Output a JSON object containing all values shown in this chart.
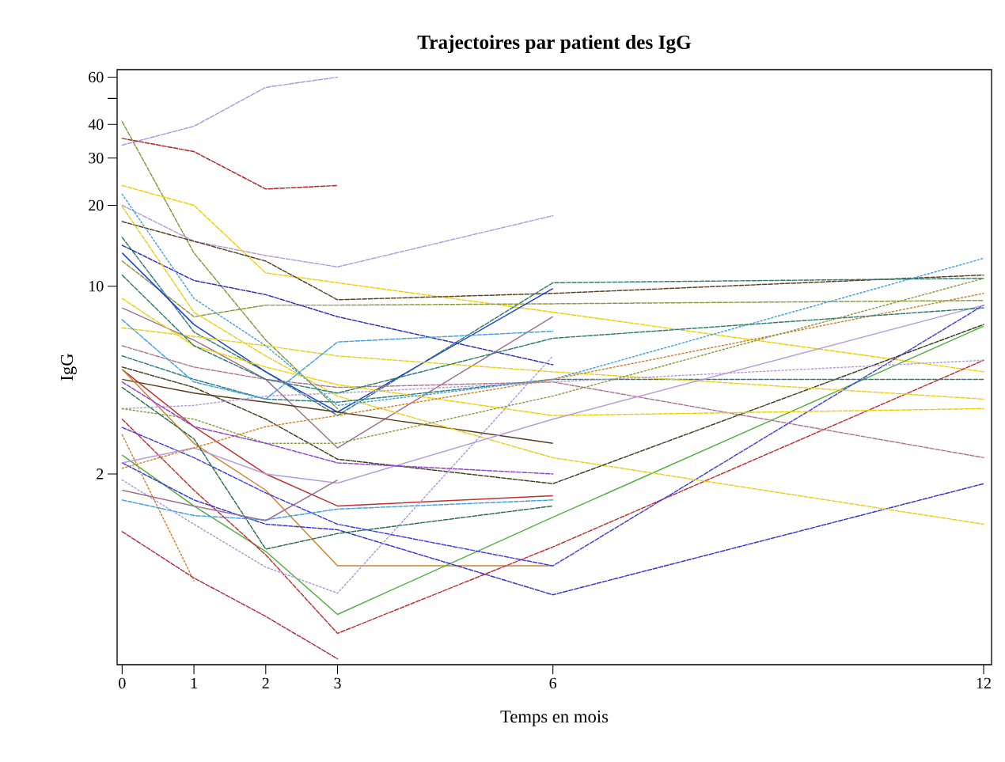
{
  "chart_data": {
    "type": "line",
    "title": "Trajectoires par patient des IgG",
    "xlabel": "Temps en mois",
    "ylabel": "IgG",
    "x": [
      0,
      1,
      2,
      3,
      6,
      12
    ],
    "log": "y",
    "marker": "none",
    "xlim": [
      -0.07,
      12.11
    ],
    "ylim": [
      0.39,
      64
    ],
    "xticks": [
      0,
      1,
      2,
      3,
      6,
      12
    ],
    "yticks": [
      2,
      10,
      20,
      30,
      40,
      {
        "value": 50,
        "label": null
      },
      60
    ],
    "series": [
      {
        "color": "#a899e6",
        "line_style": "dashed",
        "values": [
          33.5,
          39.4,
          55,
          60,
          null,
          null
        ]
      },
      {
        "color": "#b22222",
        "line_style": "dashed",
        "values": [
          35.5,
          31.7,
          23,
          23.7,
          null,
          null
        ]
      },
      {
        "color": "#7f9a3a",
        "line_style": "dashed",
        "values": [
          41,
          13.3,
          6.3,
          3.5,
          null,
          null
        ]
      },
      {
        "color": "#b39ddb",
        "line_style": "dashed",
        "values": [
          20,
          14.7,
          13,
          11.8,
          18.3,
          null
        ]
      },
      {
        "color": "#f0d000",
        "line_style": "dashed",
        "values": [
          23.7,
          20,
          11.2,
          10.3,
          8,
          4.8
        ]
      },
      {
        "color": "#5c4020",
        "line_style": "dashed",
        "values": [
          17.4,
          14.7,
          12.4,
          8.9,
          9.4,
          11
        ]
      },
      {
        "color": "#2e7d6e",
        "line_style": "dashed",
        "values": [
          15.2,
          6.75,
          4.8,
          3.3,
          10.3,
          10.7
        ]
      },
      {
        "color": "#8a9a40",
        "line_style": "dashed",
        "values": [
          12.4,
          7.7,
          8.5,
          8.5,
          8.6,
          8.85
        ]
      },
      {
        "color": "#3030c0",
        "line_style": "dashed",
        "values": [
          14.2,
          10.5,
          9.3,
          7.7,
          5.1,
          null
        ]
      },
      {
        "color": "#2040d0",
        "line_style": "solid",
        "values": [
          13.3,
          7.2,
          4.8,
          3.4,
          9.8,
          null
        ]
      },
      {
        "color": "#a07090",
        "line_style": "solid",
        "values": [
          8.3,
          6.3,
          4.5,
          2.5,
          7.7,
          null
        ]
      },
      {
        "color": "#5a3a1a",
        "line_style": "solid",
        "values": [
          4.5,
          4.0,
          3.7,
          3.4,
          2.6,
          null
        ]
      },
      {
        "color": "#c03030",
        "line_style": "solid",
        "values": [
          4.9,
          3.0,
          2.0,
          1.52,
          1.66,
          null
        ]
      },
      {
        "color": "#d08030",
        "line_style": "solid",
        "values": [
          4.9,
          2.6,
          1.74,
          0.91,
          0.91,
          null
        ]
      },
      {
        "color": "#50b040",
        "line_style": "solid",
        "values": [
          2.35,
          1.52,
          1.03,
          0.6,
          1.38,
          7.1
        ]
      },
      {
        "color": "#c03030",
        "line_style": "dashed",
        "values": [
          3.2,
          1.74,
          1.0,
          0.51,
          1.07,
          5.3
        ]
      },
      {
        "color": "#b03040",
        "line_style": "dashed",
        "values": [
          1.22,
          0.82,
          0.59,
          0.41,
          null,
          null
        ]
      },
      {
        "color": "#3535d0",
        "line_style": "dashed",
        "values": [
          2.2,
          1.6,
          1.3,
          1.24,
          0.71,
          1.84
        ]
      },
      {
        "color": "#4040e0",
        "line_style": "dashed",
        "values": [
          2.98,
          2.3,
          1.7,
          1.3,
          0.91,
          8.5
        ]
      },
      {
        "color": "#e8d020",
        "line_style": "dashed",
        "values": [
          19.8,
          8,
          5.5,
          3.9,
          2.3,
          1.3
        ]
      },
      {
        "color": "#b07890",
        "line_style": "dashed",
        "values": [
          6,
          5,
          4.5,
          4.2,
          4.4,
          2.3
        ]
      },
      {
        "color": "#404020",
        "line_style": "dashed",
        "values": [
          5,
          4.2,
          3.2,
          2.27,
          1.84,
          7.2
        ]
      },
      {
        "color": "#2e7d7d",
        "line_style": "dashed",
        "values": [
          5.5,
          4.5,
          3.8,
          3.7,
          4.5,
          4.5
        ]
      },
      {
        "color": "#f0d000",
        "line_style": "dashed",
        "values": [
          9,
          6,
          5,
          4.3,
          3.3,
          3.5
        ]
      },
      {
        "color": "#e8d020",
        "line_style": "dashed",
        "values": [
          7,
          6.5,
          6,
          5.5,
          4.8,
          3.8
        ]
      },
      {
        "color": "#40a0e0",
        "line_style": "dotted",
        "values": [
          22,
          9,
          6,
          3.6,
          4.5,
          12.7
        ]
      },
      {
        "color": "#b39ddb",
        "line_style": "solid",
        "values": [
          2.2,
          2.5,
          2.0,
          1.85,
          3.2,
          8.5
        ]
      },
      {
        "color": "#b39ddb",
        "line_style": "dotted",
        "values": [
          3.5,
          3.6,
          3.9,
          4.0,
          4.4,
          5.3
        ]
      },
      {
        "color": "#d08030",
        "line_style": "dotted",
        "values": [
          2.1,
          2.5,
          3.0,
          3.3,
          4.5,
          9.4
        ]
      },
      {
        "color": "#2e7d6e",
        "line_style": "dashed",
        "values": [
          11,
          6,
          4.5,
          4.0,
          6.4,
          8.3
        ]
      },
      {
        "color": "#40a0e0",
        "line_style": "dashed",
        "values": [
          7.5,
          4.4,
          3.8,
          6.2,
          6.8,
          null
        ]
      },
      {
        "color": "#8a9a40",
        "line_style": "dotted",
        "values": [
          3.5,
          3.2,
          2.6,
          2.6,
          3.9,
          10.7
        ]
      },
      {
        "color": "#9040d0",
        "line_style": "dashed",
        "values": [
          4.4,
          3.0,
          2.6,
          2.2,
          2.0,
          null
        ]
      },
      {
        "color": "#2e6e4e",
        "line_style": "dashed",
        "values": [
          4.2,
          2.7,
          1.05,
          1.2,
          1.52,
          null
        ]
      },
      {
        "color": "#40a0e0",
        "line_style": "dashed",
        "values": [
          1.6,
          1.4,
          1.35,
          1.48,
          1.6,
          null
        ]
      },
      {
        "color": "#a899e6",
        "line_style": "dotted",
        "values": [
          1.9,
          1.3,
          0.9,
          0.72,
          5.5,
          null
        ]
      },
      {
        "color": "#d08030",
        "line_style": "dotted",
        "values": [
          2.8,
          0.8,
          null,
          null,
          null,
          null
        ]
      },
      {
        "color": "#a07090",
        "line_style": "solid",
        "values": [
          1.74,
          1.52,
          1.34,
          1.9,
          null,
          null
        ]
      }
    ]
  }
}
